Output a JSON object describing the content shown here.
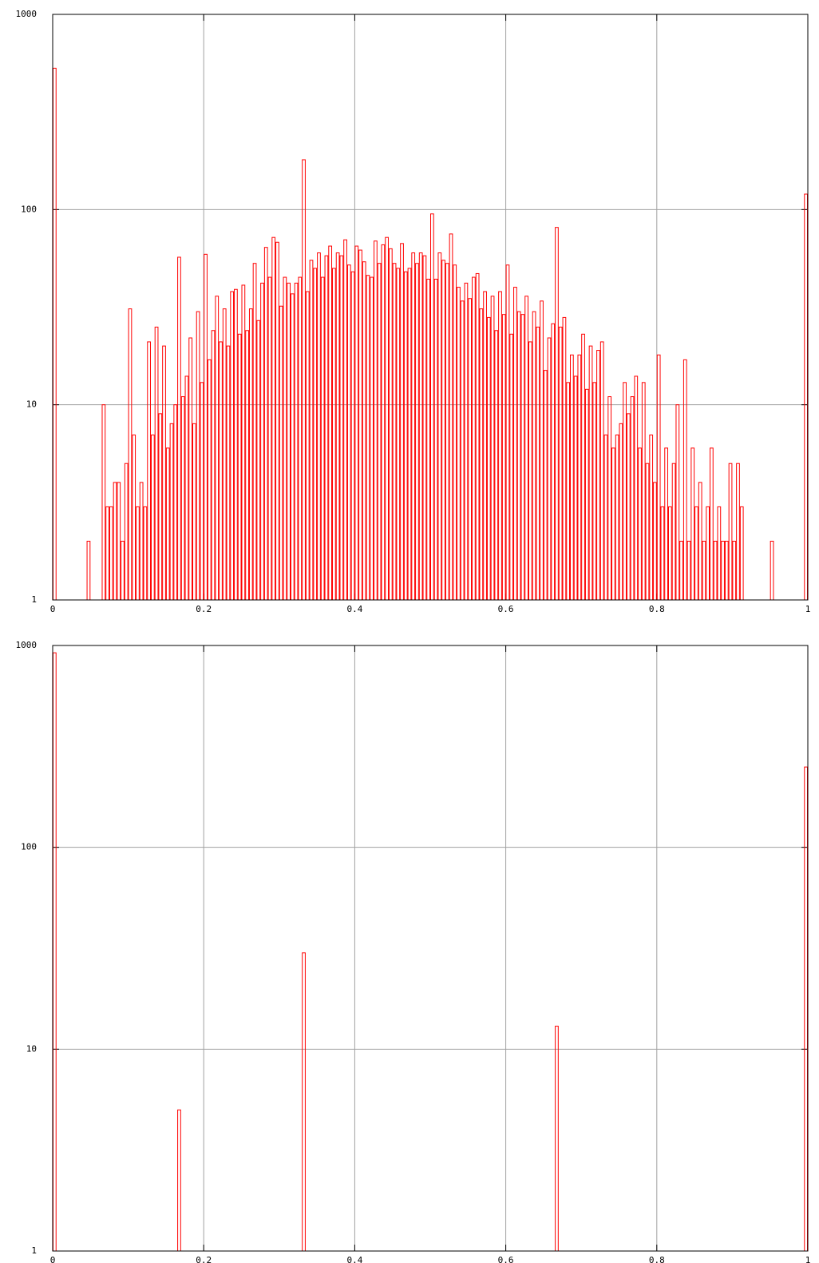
{
  "chart_data": [
    {
      "type": "histogram",
      "color": "#ff0000",
      "log_y": true,
      "grid": true,
      "xlim": [
        0,
        1
      ],
      "ylim": [
        1,
        1000
      ],
      "xticks": [
        0,
        0.2,
        0.4,
        0.6,
        0.8,
        1
      ],
      "yticks": [
        1,
        10,
        100,
        1000
      ],
      "bins": [
        0,
        0.005,
        0.01,
        0.015,
        0.02,
        0.025,
        0.03,
        0.035,
        0.04,
        0.045,
        0.05,
        0.055,
        0.06,
        0.065,
        0.07,
        0.075,
        0.08,
        0.085,
        0.09,
        0.095,
        0.1,
        0.105,
        0.11,
        0.115,
        0.12,
        0.125,
        0.13,
        0.135,
        0.14,
        0.145,
        0.15,
        0.155,
        0.16,
        0.165,
        0.17,
        0.175,
        0.18,
        0.185,
        0.19,
        0.195,
        0.2,
        0.205,
        0.21,
        0.215,
        0.22,
        0.225,
        0.23,
        0.235,
        0.24,
        0.245,
        0.25,
        0.255,
        0.26,
        0.265,
        0.27,
        0.275,
        0.28,
        0.285,
        0.29,
        0.295,
        0.3,
        0.305,
        0.31,
        0.315,
        0.32,
        0.325,
        0.33,
        0.335,
        0.34,
        0.345,
        0.35,
        0.355,
        0.36,
        0.365,
        0.37,
        0.375,
        0.38,
        0.385,
        0.39,
        0.395,
        0.4,
        0.405,
        0.41,
        0.415,
        0.42,
        0.425,
        0.43,
        0.435,
        0.44,
        0.445,
        0.45,
        0.455,
        0.46,
        0.465,
        0.47,
        0.475,
        0.48,
        0.485,
        0.49,
        0.495,
        0.5,
        0.505,
        0.51,
        0.515,
        0.52,
        0.525,
        0.53,
        0.535,
        0.54,
        0.545,
        0.55,
        0.555,
        0.56,
        0.565,
        0.57,
        0.575,
        0.58,
        0.585,
        0.59,
        0.595,
        0.6,
        0.605,
        0.61,
        0.615,
        0.62,
        0.625,
        0.63,
        0.635,
        0.64,
        0.645,
        0.65,
        0.655,
        0.66,
        0.665,
        0.67,
        0.675,
        0.68,
        0.685,
        0.69,
        0.695,
        0.7,
        0.705,
        0.71,
        0.715,
        0.72,
        0.725,
        0.73,
        0.735,
        0.74,
        0.745,
        0.75,
        0.755,
        0.76,
        0.765,
        0.77,
        0.775,
        0.78,
        0.785,
        0.79,
        0.795,
        0.8,
        0.805,
        0.81,
        0.815,
        0.82,
        0.825,
        0.83,
        0.835,
        0.84,
        0.845,
        0.85,
        0.855,
        0.86,
        0.865,
        0.87,
        0.875,
        0.88,
        0.885,
        0.89,
        0.895,
        0.9,
        0.905,
        0.91,
        0.915,
        0.92,
        0.925,
        0.93,
        0.935,
        0.94,
        0.945,
        0.95,
        0.955,
        0.96,
        0.965,
        0.97,
        0.975,
        0.98,
        0.985,
        0.99,
        0.995,
        1
      ],
      "values": [
        530,
        1,
        1,
        1,
        1,
        1,
        1,
        1,
        1,
        2,
        1,
        1,
        1,
        10,
        3,
        3,
        4,
        4,
        2,
        5,
        31,
        7,
        3,
        4,
        3,
        21,
        7,
        25,
        9,
        20,
        6,
        8,
        10,
        57,
        11,
        14,
        22,
        8,
        30,
        13,
        59,
        17,
        24,
        36,
        21,
        31,
        20,
        38,
        39,
        23,
        41,
        24,
        31,
        53,
        27,
        42,
        64,
        45,
        72,
        68,
        32,
        45,
        42,
        37,
        42,
        45,
        180,
        38,
        55,
        50,
        60,
        45,
        58,
        65,
        50,
        60,
        58,
        70,
        52,
        48,
        65,
        62,
        54,
        46,
        45,
        69,
        53,
        66,
        72,
        63,
        53,
        50,
        67,
        48,
        50,
        60,
        53,
        60,
        58,
        44,
        95,
        44,
        60,
        55,
        53,
        75,
        52,
        40,
        34,
        42,
        35,
        45,
        47,
        31,
        38,
        28,
        36,
        24,
        38,
        29,
        52,
        23,
        40,
        30,
        29,
        36,
        21,
        30,
        25,
        34,
        15,
        22,
        26,
        81,
        25,
        28,
        13,
        18,
        14,
        18,
        23,
        12,
        20,
        13,
        19,
        21,
        7,
        11,
        6,
        7,
        8,
        13,
        9,
        11,
        14,
        6,
        13,
        5,
        7,
        4,
        18,
        3,
        6,
        3,
        5,
        10,
        2,
        17,
        2,
        6,
        3,
        4,
        2,
        3,
        6,
        2,
        3,
        2,
        2,
        5,
        2,
        5,
        3,
        1,
        1,
        1,
        1,
        1,
        1,
        1,
        2,
        1,
        1,
        1,
        1,
        1,
        1,
        1,
        1,
        120
      ]
    },
    {
      "type": "histogram",
      "color": "#ff0000",
      "log_y": true,
      "grid": true,
      "xlim": [
        0,
        1
      ],
      "ylim": [
        1,
        1000
      ],
      "xticks": [
        0,
        0.2,
        0.4,
        0.6,
        0.8,
        1
      ],
      "yticks": [
        1,
        10,
        100,
        1000
      ],
      "bins": [
        0,
        0.005,
        0.01,
        0.015,
        0.02,
        0.025,
        0.03,
        0.035,
        0.04,
        0.045,
        0.05,
        0.055,
        0.06,
        0.065,
        0.07,
        0.075,
        0.08,
        0.085,
        0.09,
        0.095,
        0.1,
        0.105,
        0.11,
        0.115,
        0.12,
        0.125,
        0.13,
        0.135,
        0.14,
        0.145,
        0.15,
        0.155,
        0.16,
        0.165,
        0.17,
        0.175,
        0.18,
        0.185,
        0.19,
        0.195,
        0.2,
        0.205,
        0.21,
        0.215,
        0.22,
        0.225,
        0.23,
        0.235,
        0.24,
        0.245,
        0.25,
        0.255,
        0.26,
        0.265,
        0.27,
        0.275,
        0.28,
        0.285,
        0.29,
        0.295,
        0.3,
        0.305,
        0.31,
        0.315,
        0.32,
        0.325,
        0.33,
        0.335,
        0.34,
        0.345,
        0.35,
        0.355,
        0.36,
        0.365,
        0.37,
        0.375,
        0.38,
        0.385,
        0.39,
        0.395,
        0.4,
        0.405,
        0.41,
        0.415,
        0.42,
        0.425,
        0.43,
        0.435,
        0.44,
        0.445,
        0.45,
        0.455,
        0.46,
        0.465,
        0.47,
        0.475,
        0.48,
        0.485,
        0.49,
        0.495,
        0.5,
        0.505,
        0.51,
        0.515,
        0.52,
        0.525,
        0.53,
        0.535,
        0.54,
        0.545,
        0.55,
        0.555,
        0.56,
        0.565,
        0.57,
        0.575,
        0.58,
        0.585,
        0.59,
        0.595,
        0.6,
        0.605,
        0.61,
        0.615,
        0.62,
        0.625,
        0.63,
        0.635,
        0.64,
        0.645,
        0.65,
        0.655,
        0.66,
        0.665,
        0.67,
        0.675,
        0.68,
        0.685,
        0.69,
        0.695,
        0.7,
        0.705,
        0.71,
        0.715,
        0.72,
        0.725,
        0.73,
        0.735,
        0.74,
        0.745,
        0.75,
        0.755,
        0.76,
        0.765,
        0.77,
        0.775,
        0.78,
        0.785,
        0.79,
        0.795,
        0.8,
        0.805,
        0.81,
        0.815,
        0.82,
        0.825,
        0.83,
        0.835,
        0.84,
        0.845,
        0.85,
        0.855,
        0.86,
        0.865,
        0.87,
        0.875,
        0.88,
        0.885,
        0.89,
        0.895,
        0.9,
        0.905,
        0.91,
        0.915,
        0.92,
        0.925,
        0.93,
        0.935,
        0.94,
        0.945,
        0.95,
        0.955,
        0.96,
        0.965,
        0.97,
        0.975,
        0.98,
        0.985,
        0.99,
        0.995,
        1
      ],
      "values": [
        920,
        1,
        1,
        1,
        1,
        1,
        1,
        1,
        1,
        1,
        1,
        1,
        1,
        1,
        1,
        1,
        1,
        1,
        1,
        1,
        1,
        1,
        1,
        1,
        1,
        1,
        1,
        1,
        1,
        1,
        1,
        1,
        1,
        5,
        1,
        1,
        1,
        1,
        1,
        1,
        1,
        1,
        1,
        1,
        1,
        1,
        1,
        1,
        1,
        1,
        1,
        1,
        1,
        1,
        1,
        1,
        1,
        1,
        1,
        1,
        1,
        1,
        1,
        1,
        1,
        1,
        30,
        1,
        1,
        1,
        1,
        1,
        1,
        1,
        1,
        1,
        1,
        1,
        1,
        1,
        1,
        1,
        1,
        1,
        1,
        1,
        1,
        1,
        1,
        1,
        1,
        1,
        1,
        1,
        1,
        1,
        1,
        1,
        1,
        1,
        1,
        1,
        1,
        1,
        1,
        1,
        1,
        1,
        1,
        1,
        1,
        1,
        1,
        1,
        1,
        1,
        1,
        1,
        1,
        1,
        1,
        1,
        1,
        1,
        1,
        1,
        1,
        1,
        1,
        1,
        1,
        1,
        1,
        13,
        1,
        1,
        1,
        1,
        1,
        1,
        1,
        1,
        1,
        1,
        1,
        1,
        1,
        1,
        1,
        1,
        1,
        1,
        1,
        1,
        1,
        1,
        1,
        1,
        1,
        1,
        1,
        1,
        1,
        1,
        1,
        1,
        1,
        1,
        1,
        1,
        1,
        1,
        1,
        1,
        1,
        1,
        1,
        1,
        1,
        1,
        1,
        1,
        1,
        1,
        1,
        1,
        1,
        1,
        1,
        1,
        1,
        1,
        1,
        1,
        1,
        1,
        1,
        1,
        1,
        250
      ]
    }
  ]
}
